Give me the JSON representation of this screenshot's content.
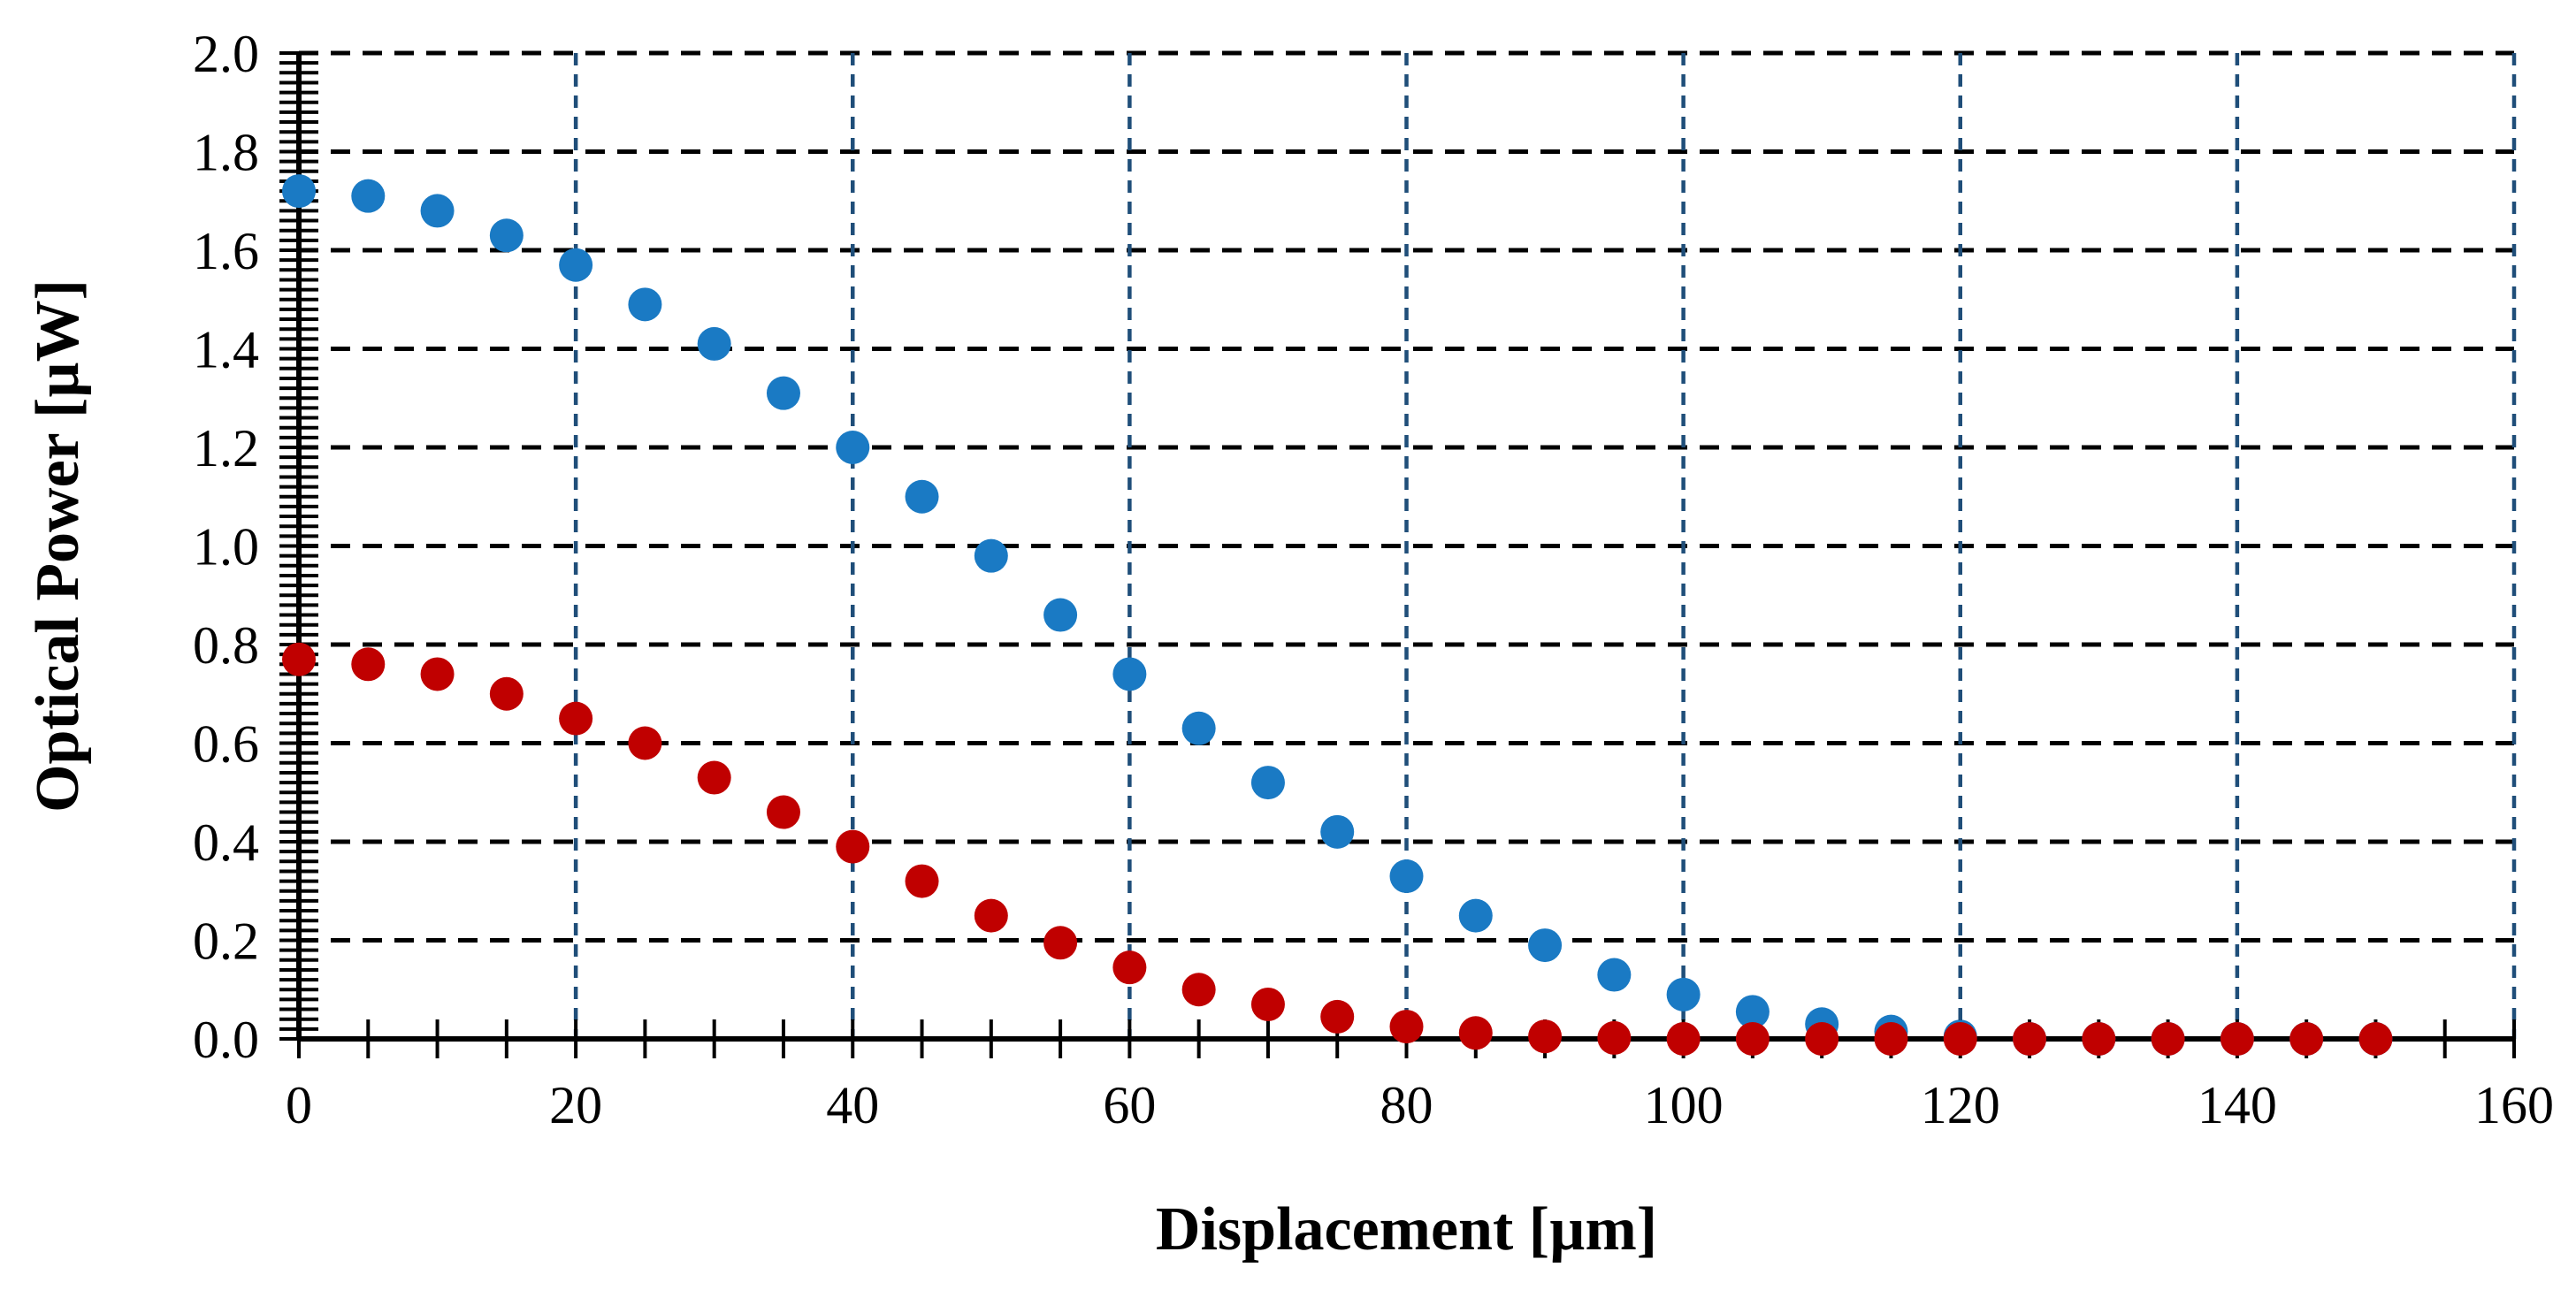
{
  "chart_data": {
    "type": "scatter",
    "xlabel": "Displacement [µm]",
    "ylabel": "Optical Power [µW]",
    "xlim": [
      0,
      160
    ],
    "ylim": [
      0,
      2.0
    ],
    "x_ticks": [
      "0",
      "20",
      "40",
      "60",
      "80",
      "100",
      "120",
      "140",
      "160"
    ],
    "y_ticks": [
      "0.0",
      "0.2",
      "0.4",
      "0.6",
      "0.8",
      "1.0",
      "1.2",
      "1.4",
      "1.6",
      "1.8",
      "2.0"
    ],
    "grid": true,
    "grid_style": "dashed",
    "legend": "none",
    "colors": {
      "series_blue": "#1a7ac4",
      "series_red": "#c00000",
      "grid_horizontal": "#000000",
      "grid_vertical": "#1f4e79",
      "axis": "#000000"
    },
    "x": [
      0,
      5,
      10,
      15,
      20,
      25,
      30,
      35,
      40,
      45,
      50,
      55,
      60,
      65,
      70,
      75,
      80,
      85,
      90,
      95,
      100,
      105,
      110,
      115,
      120,
      125,
      130,
      135,
      140,
      145,
      150
    ],
    "series": [
      {
        "color": "#1a7ac4",
        "values": [
          1.72,
          1.71,
          1.68,
          1.63,
          1.57,
          1.49,
          1.41,
          1.31,
          1.2,
          1.1,
          0.98,
          0.86,
          0.74,
          0.63,
          0.52,
          0.42,
          0.33,
          0.25,
          0.19,
          0.13,
          0.09,
          0.055,
          0.03,
          0.015,
          0.005,
          0.0,
          0.0,
          0.0,
          0.0,
          0.0,
          0.0
        ]
      },
      {
        "color": "#c00000",
        "values": [
          0.77,
          0.76,
          0.74,
          0.7,
          0.65,
          0.6,
          0.53,
          0.46,
          0.39,
          0.32,
          0.25,
          0.195,
          0.145,
          0.1,
          0.07,
          0.045,
          0.025,
          0.012,
          0.005,
          0.002,
          0.0,
          0.0,
          0.0,
          0.0,
          0.0,
          0.0,
          0.0,
          0.0,
          0.0,
          0.0,
          0.0
        ]
      }
    ]
  }
}
